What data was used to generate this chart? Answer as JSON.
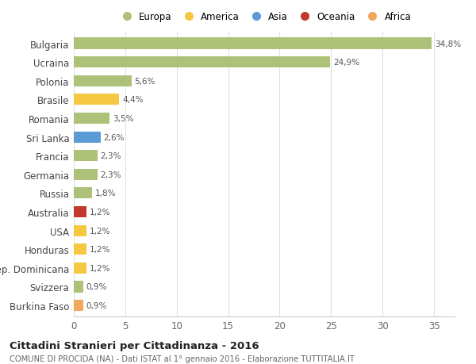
{
  "categories": [
    "Bulgaria",
    "Ucraina",
    "Polonia",
    "Brasile",
    "Romania",
    "Sri Lanka",
    "Francia",
    "Germania",
    "Russia",
    "Australia",
    "USA",
    "Honduras",
    "Rep. Dominicana",
    "Svizzera",
    "Burkina Faso"
  ],
  "values": [
    34.8,
    24.9,
    5.6,
    4.4,
    3.5,
    2.6,
    2.3,
    2.3,
    1.8,
    1.2,
    1.2,
    1.2,
    1.2,
    0.9,
    0.9
  ],
  "labels": [
    "34,8%",
    "24,9%",
    "5,6%",
    "4,4%",
    "3,5%",
    "2,6%",
    "2,3%",
    "2,3%",
    "1,8%",
    "1,2%",
    "1,2%",
    "1,2%",
    "1,2%",
    "0,9%",
    "0,9%"
  ],
  "bar_colors": [
    "#adc178",
    "#adc178",
    "#adc178",
    "#f5c842",
    "#adc178",
    "#5b9bd5",
    "#adc178",
    "#adc178",
    "#adc178",
    "#c0392b",
    "#f5c842",
    "#f5c842",
    "#f5c842",
    "#adc178",
    "#f0a85c"
  ],
  "legend_labels": [
    "Europa",
    "America",
    "Asia",
    "Oceania",
    "Africa"
  ],
  "legend_colors": [
    "#adc178",
    "#f5c842",
    "#5b9bd5",
    "#c0392b",
    "#f0a85c"
  ],
  "title": "Cittadini Stranieri per Cittadinanza - 2016",
  "subtitle": "COMUNE DI PROCIDA (NA) - Dati ISTAT al 1° gennaio 2016 - Elaborazione TUTTITALIA.IT",
  "xlim": [
    0,
    37
  ],
  "xticks": [
    0,
    5,
    10,
    15,
    20,
    25,
    30,
    35
  ],
  "bg_color": "#ffffff",
  "grid_color": "#e0e0e0",
  "bar_height": 0.6
}
